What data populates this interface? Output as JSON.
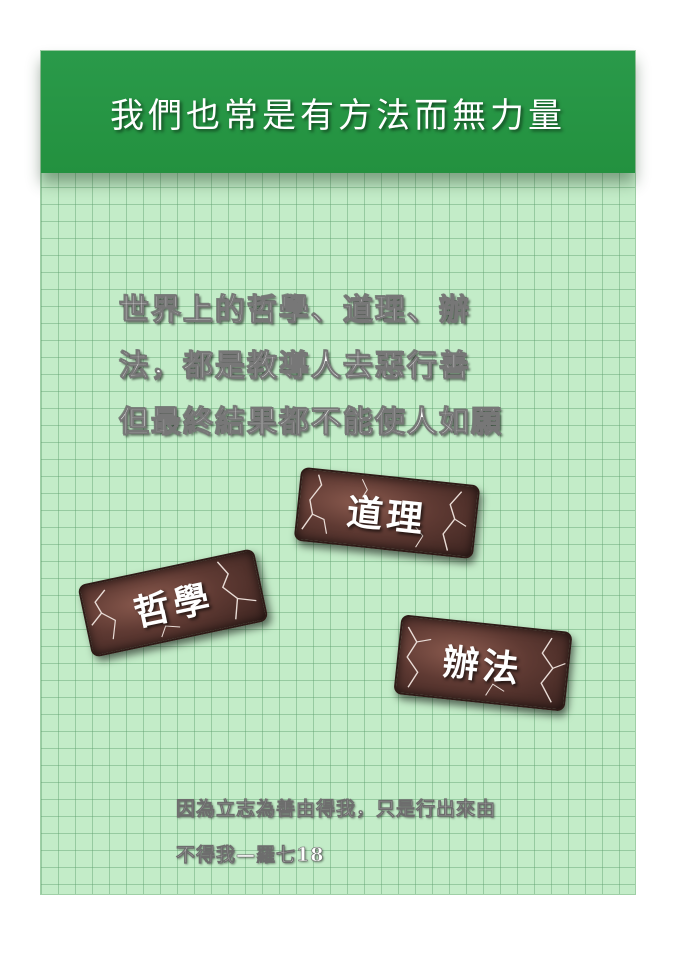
{
  "header": {
    "title": "我們也常是有方法而無力量"
  },
  "body": {
    "lines": [
      "世界上的哲學、道理、辦",
      "法，都是教導人去惡行善",
      "但最終結果都不能使人如願"
    ]
  },
  "plaques": {
    "daoli": "道理",
    "zhexue": "哲學",
    "bianfa": "辦法"
  },
  "verse": {
    "lines": [
      "因為立志為善由得我，只是行出來由",
      "不得我—羅七18"
    ]
  },
  "colors": {
    "header_green": "#23913f",
    "grid_background": "#c3ecc8",
    "plaque_brown": "#5f3a33"
  }
}
